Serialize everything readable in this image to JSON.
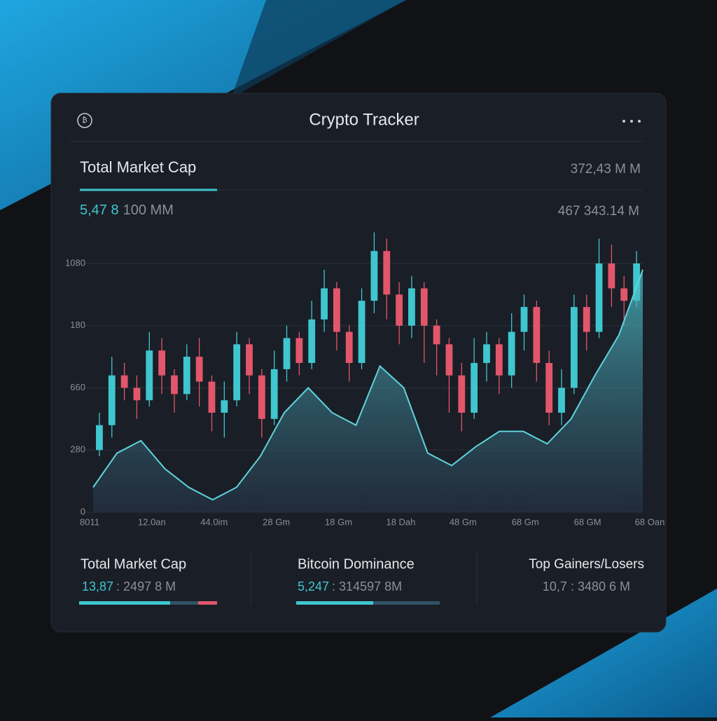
{
  "header": {
    "title": "Crypto Tracker"
  },
  "summary": {
    "label": "Total Market Cap",
    "right_top": "372,43 M M",
    "value_highlight": "5,47 8",
    "value_rest": "100 MМ",
    "right_bottom": "467 343.14 M"
  },
  "chart_data": {
    "type": "candlestick",
    "y_labels": [
      "0",
      "280",
      "660",
      "180",
      "1080"
    ],
    "categories": [
      "8011",
      "12.0an",
      "44.0im",
      "28 Gm",
      "18 Gm",
      "18 Dah",
      "48 Gm",
      "68 Gm",
      "68 GM",
      "68 Oan"
    ],
    "ylim": [
      0,
      4.8
    ],
    "up_color": "#3fc6cf",
    "down_color": "#e2566b",
    "open": [
      1.0,
      1.4,
      2.2,
      2.0,
      1.8,
      2.6,
      2.2,
      1.9,
      2.5,
      2.1,
      1.6,
      1.8,
      2.7,
      2.2,
      1.5,
      2.3,
      2.8,
      2.4,
      3.1,
      3.6,
      2.9,
      2.4,
      3.4,
      4.2,
      3.5,
      3.0,
      3.6,
      3.0,
      2.7,
      2.2,
      1.6,
      2.4,
      2.7,
      2.2,
      2.9,
      3.3,
      2.4,
      1.6,
      2.0,
      3.3,
      2.9,
      4.0,
      3.6,
      3.4
    ],
    "close": [
      1.4,
      2.2,
      2.0,
      1.8,
      2.6,
      2.2,
      1.9,
      2.5,
      2.1,
      1.6,
      1.8,
      2.7,
      2.2,
      1.5,
      2.3,
      2.8,
      2.4,
      3.1,
      3.6,
      2.9,
      2.4,
      3.4,
      4.2,
      3.5,
      3.0,
      3.6,
      3.0,
      2.7,
      2.2,
      1.6,
      2.4,
      2.7,
      2.2,
      2.9,
      3.3,
      2.4,
      1.6,
      2.0,
      3.3,
      2.9,
      4.0,
      3.6,
      3.4,
      4.0
    ],
    "high": [
      1.6,
      2.5,
      2.4,
      2.2,
      2.9,
      2.8,
      2.3,
      2.7,
      2.8,
      2.2,
      2.1,
      2.9,
      2.8,
      2.3,
      2.6,
      3.0,
      2.9,
      3.4,
      3.9,
      3.7,
      3.0,
      3.6,
      4.5,
      4.4,
      3.7,
      3.8,
      3.7,
      3.1,
      2.8,
      2.4,
      2.8,
      2.9,
      2.8,
      3.2,
      3.5,
      3.4,
      2.6,
      2.3,
      3.5,
      3.5,
      4.4,
      4.3,
      3.8,
      4.2
    ],
    "low": [
      0.9,
      1.2,
      1.8,
      1.5,
      1.7,
      1.9,
      1.6,
      1.8,
      1.7,
      1.3,
      1.2,
      1.7,
      1.9,
      1.2,
      1.4,
      2.1,
      2.2,
      2.3,
      2.9,
      2.6,
      2.1,
      2.3,
      3.2,
      3.1,
      2.7,
      2.8,
      2.4,
      2.2,
      1.6,
      1.3,
      1.5,
      2.1,
      1.9,
      2.0,
      2.6,
      2.1,
      1.4,
      1.4,
      1.9,
      2.6,
      2.8,
      3.3,
      3.0,
      3.3
    ],
    "area": {
      "color": "#5fd3dc",
      "values": [
        0.4,
        0.95,
        1.15,
        0.7,
        0.4,
        0.2,
        0.4,
        0.9,
        1.6,
        2.0,
        1.6,
        1.4,
        2.35,
        2.0,
        0.95,
        0.75,
        1.05,
        1.3,
        1.3,
        1.1,
        1.5,
        2.2,
        2.85,
        3.9
      ]
    }
  },
  "stats": [
    {
      "label": "Total Market Cap",
      "value": "13,87",
      "detail": ": 2497 8 M"
    },
    {
      "label": "Bitcoin Dominance",
      "value": "5,247",
      "detail": ": 314597 8M"
    },
    {
      "label": "Top Gainers/Losers",
      "value": "10,7 : 3480 6 M"
    }
  ]
}
